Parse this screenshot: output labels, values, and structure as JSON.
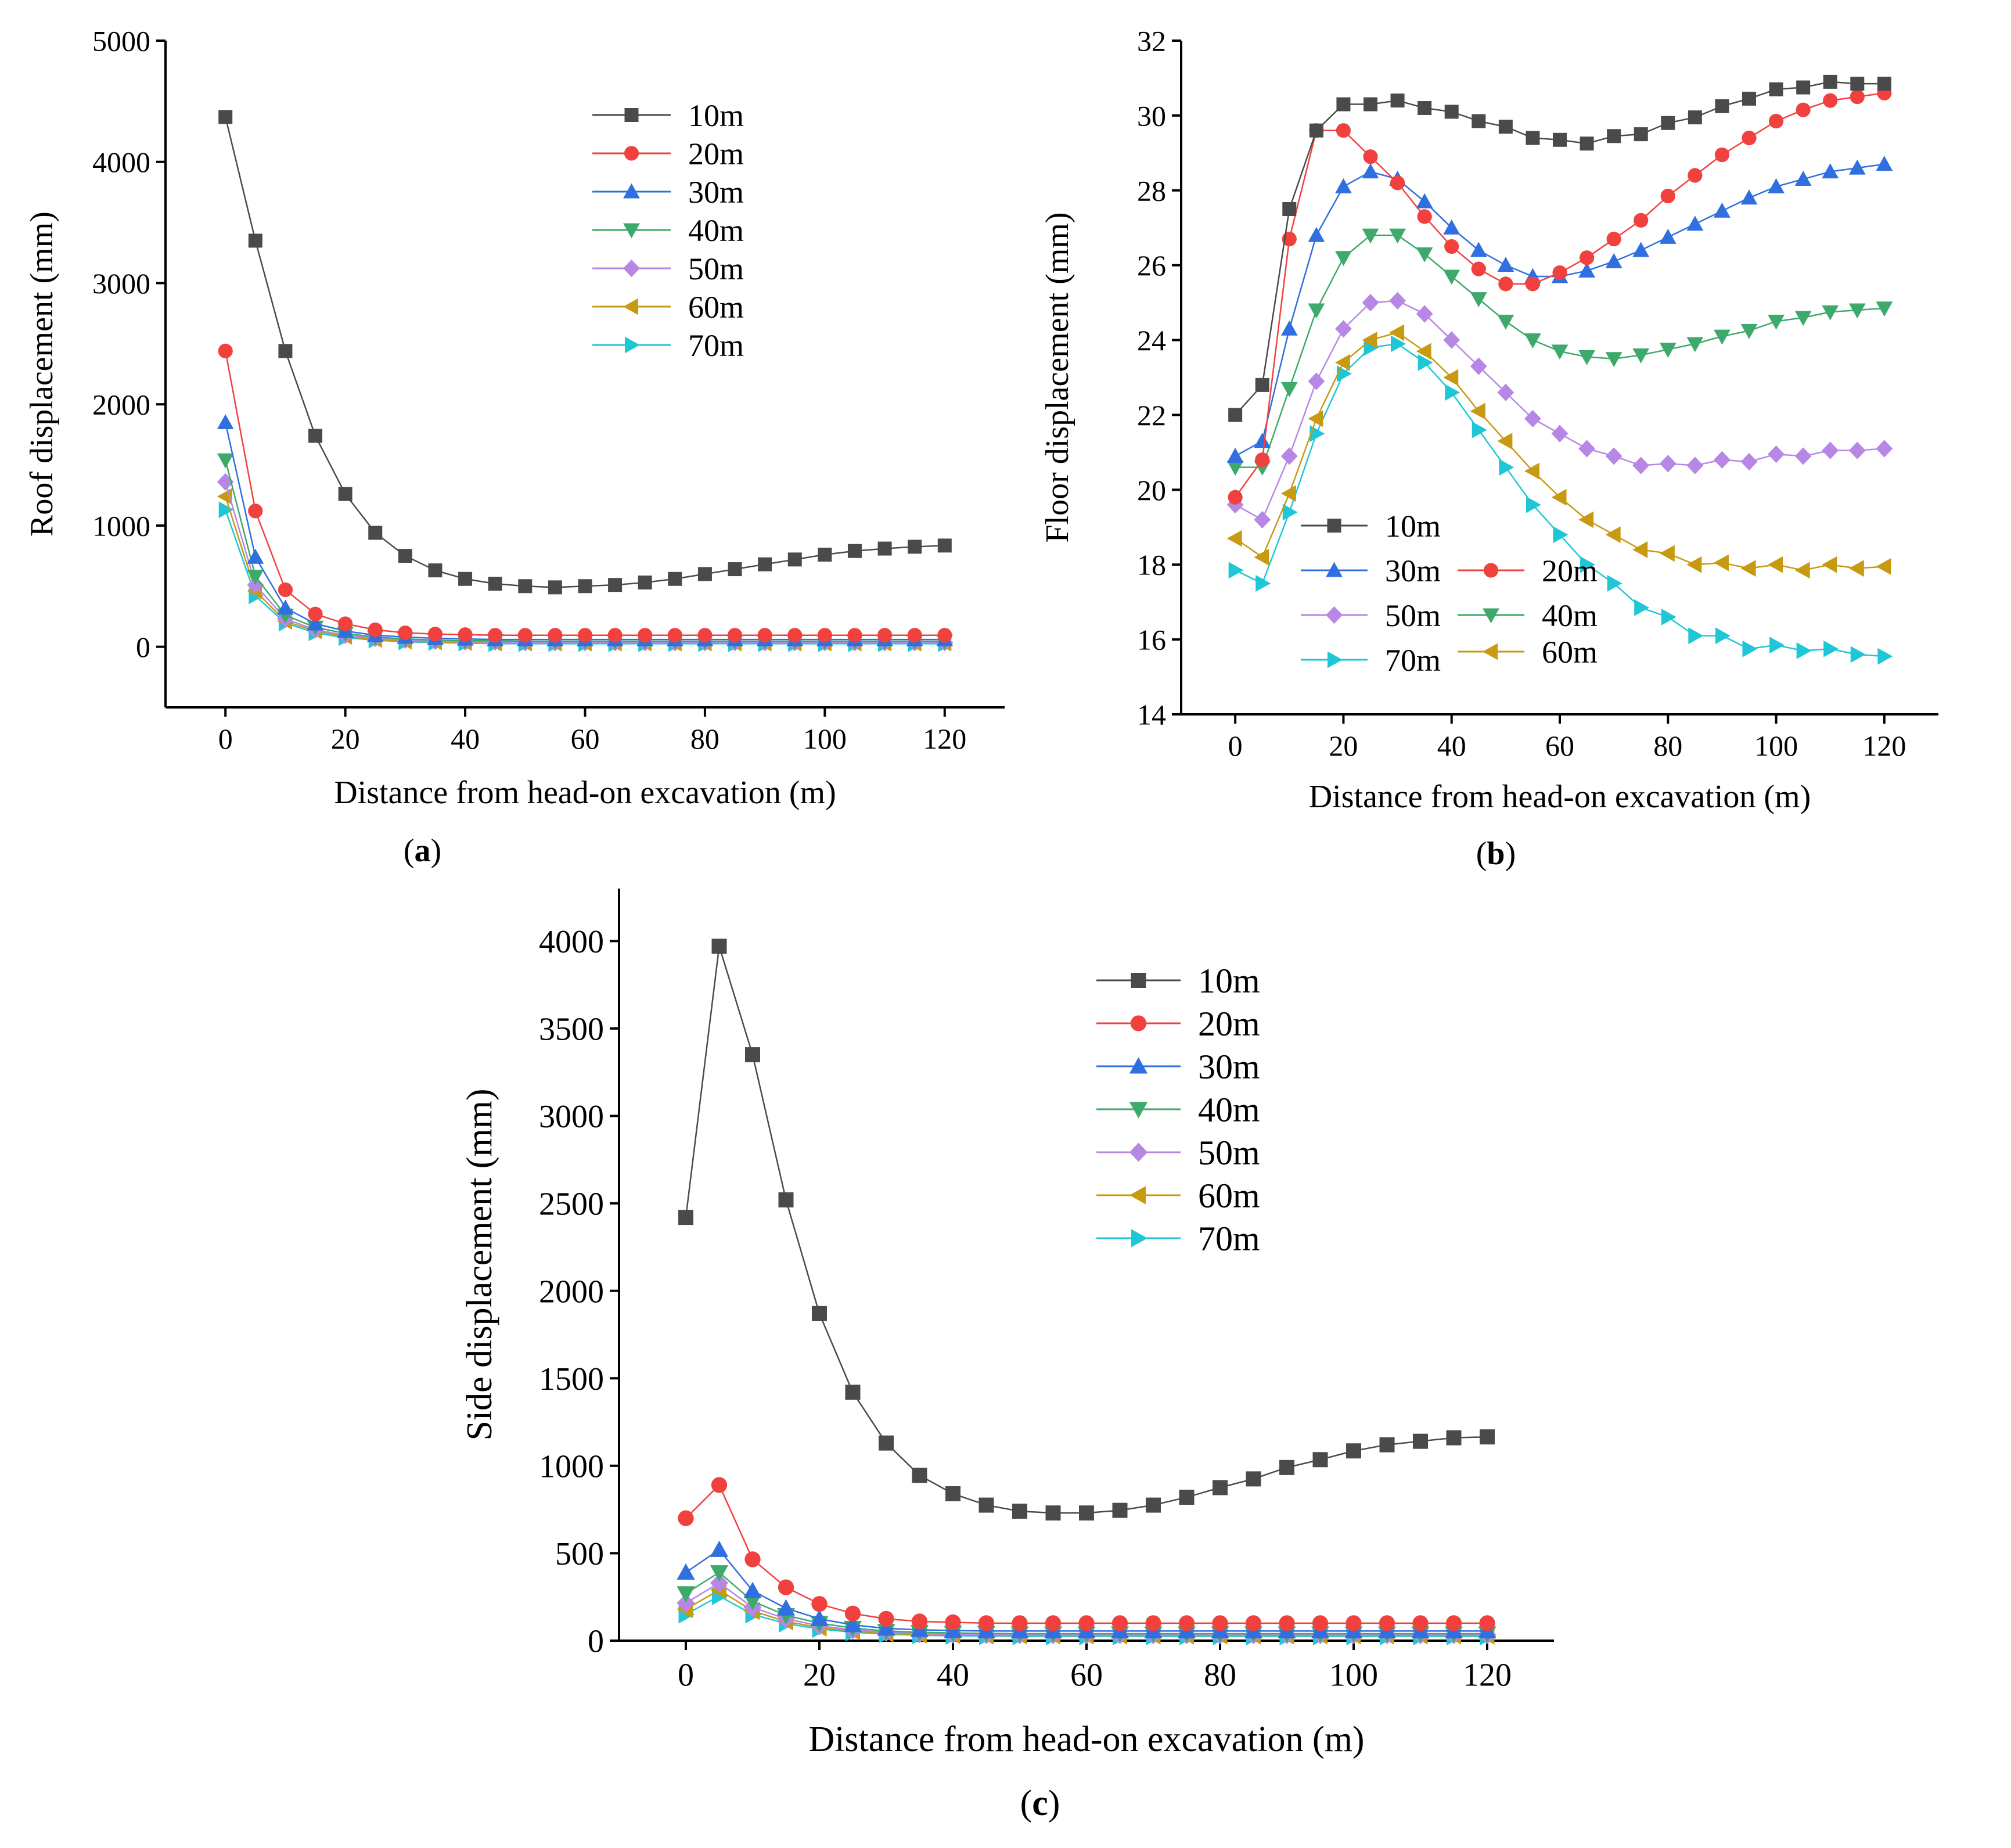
{
  "colors": {
    "10m": "#4a4a4a",
    "20m": "#f0413f",
    "30m": "#2f6fe0",
    "40m": "#3daa6b",
    "50m": "#b787e6",
    "60m": "#c79a12",
    "70m": "#1fc7d6"
  },
  "chart_data": [
    {
      "type": "line",
      "panel_label": "(a)",
      "xlabel": "Distance from head-on excavation (m)",
      "ylabel": "Roof displacement (mm)",
      "xlim": [
        -10,
        130
      ],
      "ylim": [
        -500,
        5000
      ],
      "xticks": [
        0,
        20,
        40,
        60,
        80,
        100,
        120
      ],
      "yticks": [
        0,
        1000,
        2000,
        3000,
        4000,
        5000
      ],
      "x": [
        0,
        5,
        10,
        15,
        20,
        25,
        30,
        35,
        40,
        45,
        50,
        55,
        60,
        65,
        70,
        75,
        80,
        85,
        90,
        95,
        100,
        105,
        110,
        115,
        120
      ],
      "legend_position": "top-center",
      "series": [
        {
          "name": "10m",
          "marker": "square",
          "values": [
            4370,
            3350,
            2440,
            1740,
            1260,
            940,
            750,
            630,
            560,
            520,
            500,
            490,
            500,
            510,
            530,
            560,
            600,
            640,
            680,
            720,
            760,
            790,
            810,
            825,
            835
          ]
        },
        {
          "name": "20m",
          "marker": "circle",
          "values": [
            2440,
            1120,
            470,
            270,
            190,
            140,
            115,
            105,
            100,
            95,
            95,
            95,
            95,
            95,
            95,
            95,
            95,
            95,
            95,
            95,
            95,
            95,
            95,
            95,
            95
          ]
        },
        {
          "name": "30m",
          "marker": "triangle-up",
          "values": [
            1850,
            740,
            320,
            190,
            130,
            95,
            80,
            70,
            65,
            60,
            60,
            60,
            60,
            60,
            60,
            60,
            60,
            60,
            60,
            60,
            60,
            60,
            60,
            60,
            60
          ]
        },
        {
          "name": "40m",
          "marker": "triangle-down",
          "values": [
            1540,
            580,
            260,
            160,
            110,
            80,
            65,
            55,
            50,
            50,
            45,
            45,
            45,
            45,
            45,
            45,
            45,
            45,
            45,
            45,
            45,
            45,
            45,
            45,
            45
          ]
        },
        {
          "name": "50m",
          "marker": "diamond",
          "values": [
            1360,
            510,
            230,
            140,
            95,
            70,
            55,
            45,
            40,
            40,
            35,
            35,
            35,
            35,
            35,
            35,
            35,
            35,
            35,
            35,
            35,
            35,
            35,
            35,
            35
          ]
        },
        {
          "name": "60m",
          "marker": "triangle-left",
          "values": [
            1240,
            460,
            210,
            130,
            85,
            60,
            45,
            40,
            35,
            30,
            30,
            30,
            30,
            30,
            30,
            30,
            30,
            30,
            30,
            30,
            30,
            30,
            30,
            30,
            30
          ]
        },
        {
          "name": "70m",
          "marker": "triangle-right",
          "values": [
            1130,
            420,
            195,
            115,
            75,
            55,
            40,
            35,
            30,
            25,
            25,
            25,
            25,
            25,
            25,
            25,
            25,
            25,
            25,
            25,
            25,
            25,
            25,
            25,
            25
          ]
        }
      ]
    },
    {
      "type": "line",
      "panel_label": "(b)",
      "xlabel": "Distance from head-on excavation (m)",
      "ylabel": "Floor displacement (mm)",
      "xlim": [
        -10,
        130
      ],
      "ylim": [
        14,
        32
      ],
      "xticks": [
        0,
        20,
        40,
        60,
        80,
        100,
        120
      ],
      "yticks": [
        14,
        16,
        18,
        20,
        22,
        24,
        26,
        28,
        30,
        32
      ],
      "x": [
        0,
        5,
        10,
        15,
        20,
        25,
        30,
        35,
        40,
        45,
        50,
        55,
        60,
        65,
        70,
        75,
        80,
        85,
        90,
        95,
        100,
        105,
        110,
        115,
        120
      ],
      "legend_position": "lower-left",
      "series": [
        {
          "name": "10m",
          "marker": "square",
          "values": [
            22.0,
            22.8,
            27.5,
            29.6,
            30.3,
            30.3,
            30.4,
            30.2,
            30.1,
            29.85,
            29.7,
            29.4,
            29.35,
            29.25,
            29.45,
            29.5,
            29.8,
            29.95,
            30.25,
            30.45,
            30.7,
            30.75,
            30.9,
            30.85,
            30.85
          ]
        },
        {
          "name": "20m",
          "marker": "circle",
          "values": [
            19.8,
            20.8,
            26.7,
            29.6,
            29.6,
            28.9,
            28.2,
            27.3,
            26.5,
            25.9,
            25.5,
            25.5,
            25.8,
            26.2,
            26.7,
            27.2,
            27.85,
            28.4,
            28.95,
            29.4,
            29.85,
            30.15,
            30.4,
            30.5,
            30.6
          ]
        },
        {
          "name": "30m",
          "marker": "triangle-up",
          "values": [
            20.9,
            21.3,
            24.3,
            26.8,
            28.1,
            28.5,
            28.3,
            27.7,
            27.0,
            26.4,
            26.0,
            25.7,
            25.7,
            25.85,
            26.1,
            26.4,
            26.75,
            27.1,
            27.45,
            27.8,
            28.1,
            28.3,
            28.5,
            28.6,
            28.7
          ]
        },
        {
          "name": "40m",
          "marker": "triangle-down",
          "values": [
            20.6,
            20.6,
            22.7,
            24.8,
            26.2,
            26.8,
            26.8,
            26.3,
            25.7,
            25.1,
            24.5,
            24.0,
            23.7,
            23.55,
            23.5,
            23.6,
            23.75,
            23.9,
            24.1,
            24.25,
            24.5,
            24.6,
            24.75,
            24.8,
            24.85
          ]
        },
        {
          "name": "50m",
          "marker": "diamond",
          "values": [
            19.6,
            19.2,
            20.9,
            22.9,
            24.3,
            25.0,
            25.05,
            24.7,
            24.0,
            23.3,
            22.6,
            21.9,
            21.5,
            21.1,
            20.9,
            20.65,
            20.7,
            20.65,
            20.8,
            20.75,
            20.95,
            20.9,
            21.05,
            21.05,
            21.1
          ]
        },
        {
          "name": "60m",
          "marker": "triangle-left",
          "values": [
            18.7,
            18.2,
            19.9,
            21.9,
            23.4,
            24.0,
            24.2,
            23.7,
            23.0,
            22.1,
            21.3,
            20.5,
            19.8,
            19.2,
            18.8,
            18.4,
            18.3,
            18.0,
            18.05,
            17.9,
            18.0,
            17.85,
            18.0,
            17.9,
            17.95
          ]
        },
        {
          "name": "70m",
          "marker": "triangle-right",
          "values": [
            17.85,
            17.5,
            19.4,
            21.5,
            23.1,
            23.8,
            23.9,
            23.4,
            22.6,
            21.6,
            20.6,
            19.6,
            18.8,
            18.0,
            17.5,
            16.85,
            16.6,
            16.1,
            16.1,
            15.75,
            15.85,
            15.7,
            15.75,
            15.6,
            15.55
          ]
        }
      ]
    },
    {
      "type": "line",
      "panel_label": "(c)",
      "xlabel": "Distance from head-on excavation (m)",
      "ylabel": "Side displacement (mm)",
      "xlim": [
        -10,
        130
      ],
      "ylim": [
        0,
        4300
      ],
      "xticks": [
        0,
        20,
        40,
        60,
        80,
        100,
        120
      ],
      "yticks": [
        0,
        500,
        1000,
        1500,
        2000,
        2500,
        3000,
        3500,
        4000
      ],
      "x": [
        0,
        5,
        10,
        15,
        20,
        25,
        30,
        35,
        40,
        45,
        50,
        55,
        60,
        65,
        70,
        75,
        80,
        85,
        90,
        95,
        100,
        105,
        110,
        115,
        120
      ],
      "legend_position": "top-center",
      "series": [
        {
          "name": "10m",
          "marker": "square",
          "values": [
            2420,
            3970,
            3350,
            2520,
            1870,
            1420,
            1130,
            945,
            840,
            775,
            740,
            730,
            730,
            745,
            775,
            820,
            875,
            925,
            990,
            1035,
            1085,
            1120,
            1140,
            1160,
            1165
          ]
        },
        {
          "name": "20m",
          "marker": "circle",
          "values": [
            700,
            890,
            465,
            305,
            210,
            155,
            125,
            110,
            105,
            100,
            100,
            100,
            100,
            100,
            100,
            100,
            100,
            100,
            100,
            100,
            100,
            100,
            100,
            100,
            100
          ]
        },
        {
          "name": "30m",
          "marker": "triangle-up",
          "values": [
            390,
            520,
            285,
            185,
            125,
            90,
            70,
            62,
            58,
            55,
            55,
            55,
            55,
            55,
            55,
            55,
            55,
            55,
            55,
            55,
            55,
            55,
            55,
            55,
            55
          ]
        },
        {
          "name": "40m",
          "marker": "triangle-down",
          "values": [
            270,
            390,
            225,
            145,
            100,
            72,
            55,
            48,
            44,
            42,
            40,
            40,
            40,
            40,
            40,
            40,
            40,
            40,
            40,
            40,
            40,
            40,
            40,
            40,
            40
          ]
        },
        {
          "name": "50m",
          "marker": "diamond",
          "values": [
            215,
            330,
            190,
            125,
            85,
            62,
            48,
            40,
            37,
            35,
            34,
            34,
            34,
            34,
            34,
            34,
            34,
            34,
            34,
            34,
            34,
            34,
            34,
            34,
            34
          ]
        },
        {
          "name": "60m",
          "marker": "triangle-left",
          "values": [
            180,
            290,
            170,
            110,
            75,
            55,
            42,
            35,
            32,
            30,
            30,
            30,
            30,
            30,
            30,
            30,
            30,
            30,
            30,
            30,
            30,
            30,
            30,
            30,
            30
          ]
        },
        {
          "name": "70m",
          "marker": "triangle-right",
          "values": [
            150,
            255,
            150,
            98,
            67,
            48,
            37,
            31,
            28,
            26,
            25,
            25,
            25,
            25,
            25,
            25,
            25,
            25,
            25,
            25,
            25,
            25,
            25,
            25,
            25
          ]
        }
      ]
    }
  ]
}
